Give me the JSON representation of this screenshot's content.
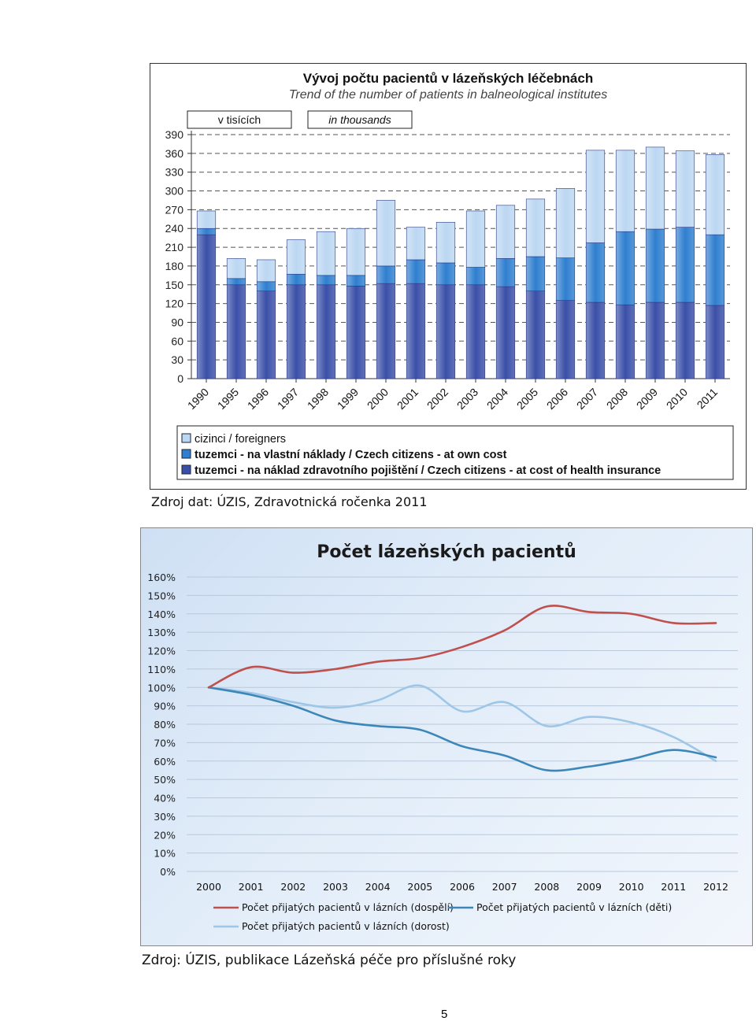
{
  "chart_data": [
    {
      "type": "bar",
      "stacked": true,
      "title": "Vývoj počtu pacientů v lázeňských léčebnách",
      "subtitle": "Trend of the number of patients in balneological institutes",
      "unit_labels": [
        "v tisících",
        "in thousands"
      ],
      "categories": [
        "1990",
        "1995",
        "1996",
        "1997",
        "1998",
        "1999",
        "2000",
        "2001",
        "2002",
        "2003",
        "2004",
        "2005",
        "2006",
        "2007",
        "2008",
        "2009",
        "2010",
        "2011"
      ],
      "series": [
        {
          "name": "tuzemci - na náklad zdravotního pojištění / Czech citizens - at cost of health insurance",
          "color": "#3a4fa8",
          "values": [
            230,
            150,
            140,
            150,
            150,
            148,
            152,
            152,
            150,
            150,
            147,
            140,
            125,
            122,
            118,
            122,
            122,
            117
          ]
        },
        {
          "name": "tuzemci - na vlastní náklady / Czech citizens - at own cost",
          "color": "#2f7fd0",
          "values": [
            10,
            10,
            15,
            17,
            15,
            17,
            28,
            38,
            35,
            28,
            45,
            55,
            68,
            95,
            117,
            117,
            120,
            113
          ]
        },
        {
          "name": "cizinci / foreigners",
          "color": "#bcd7f2",
          "values": [
            28,
            32,
            35,
            55,
            70,
            75,
            105,
            52,
            65,
            90,
            85,
            92,
            111,
            148,
            130,
            131,
            122,
            128
          ]
        }
      ],
      "ylim": [
        0,
        390
      ],
      "yticks": [
        0,
        30,
        60,
        90,
        120,
        150,
        180,
        210,
        240,
        270,
        300,
        330,
        360,
        390
      ],
      "grid": true,
      "legend_position": "bottom"
    },
    {
      "type": "line",
      "title": "Počet lázeňských pacientů",
      "x": [
        "2000",
        "2001",
        "2002",
        "2003",
        "2004",
        "2005",
        "2006",
        "2007",
        "2008",
        "2009",
        "2010",
        "2011",
        "2012"
      ],
      "series": [
        {
          "name": "Počet přijatých pacientů v lázních (dospělí)",
          "color": "#c0504d",
          "values": [
            100,
            111,
            108,
            110,
            114,
            116,
            122,
            131,
            144,
            141,
            140,
            135,
            135
          ]
        },
        {
          "name": "Počet přijatých pacientů v lázních (děti)",
          "color": "#3d87b8",
          "values": [
            100,
            96,
            90,
            82,
            79,
            77,
            68,
            63,
            55,
            57,
            61,
            66,
            62
          ]
        },
        {
          "name": "Počet přijatých pacientů v lázních (dorost)",
          "color": "#9ec6e6",
          "values": [
            100,
            97,
            92,
            89,
            93,
            101,
            87,
            92,
            79,
            84,
            81,
            73,
            60
          ]
        }
      ],
      "ylim": [
        0,
        160
      ],
      "yticks": [
        0,
        10,
        20,
        30,
        40,
        50,
        60,
        70,
        80,
        90,
        100,
        110,
        120,
        130,
        140,
        150,
        160
      ],
      "ytick_format": "percent",
      "grid": true,
      "legend_position": "bottom"
    }
  ],
  "sources": {
    "first": "Zdroj dat: ÚZIS, Zdravotnická ročenka 2011",
    "second": "Zdroj: ÚZIS, publikace Lázeňská péče pro příslušné roky"
  },
  "page_number": "5"
}
